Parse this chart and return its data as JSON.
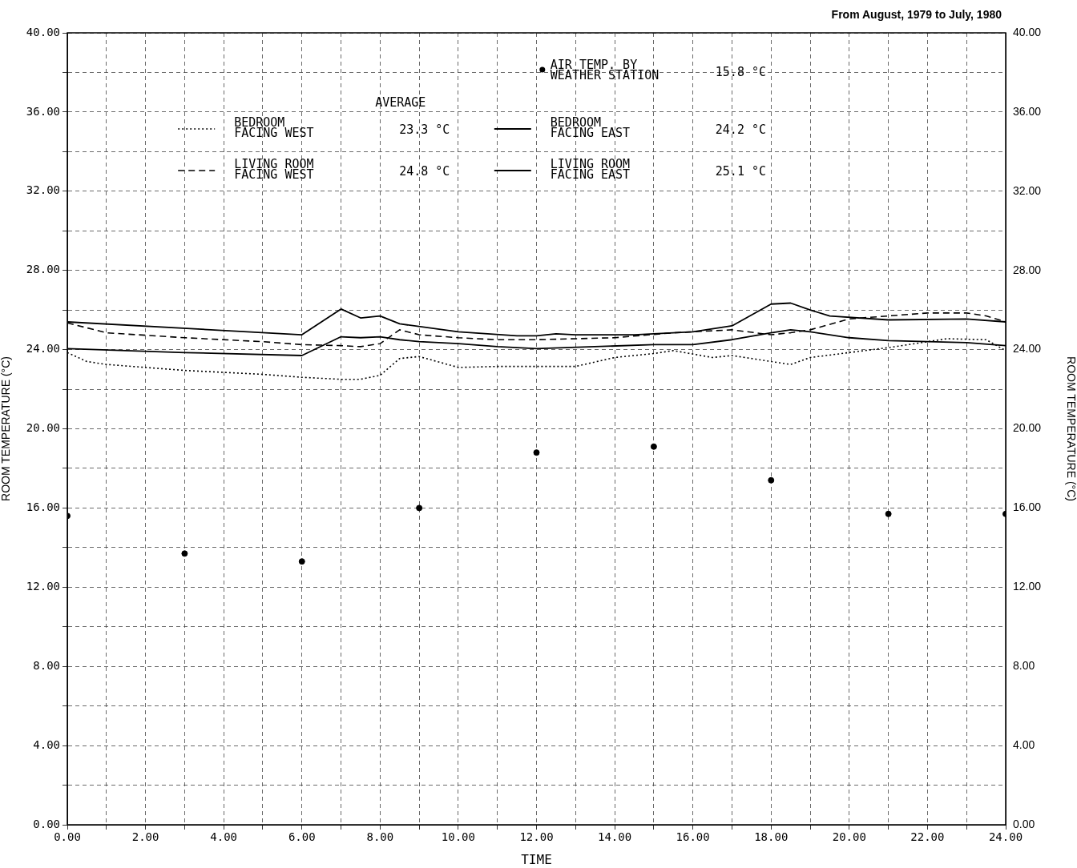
{
  "chart_data": {
    "type": "line",
    "title": "From August, 1979 to July, 1980",
    "xlabel": "TIME",
    "ylabel": "ROOM TEMPERATURE (°C)",
    "y2label": "ROOM TEMPERATURE (°C)",
    "legend_title": "AVERAGE",
    "legend": "top",
    "grid": true,
    "xlim": [
      0,
      24
    ],
    "ylim": [
      0,
      40
    ],
    "y2lim": [
      0,
      40
    ],
    "xticks": [
      {
        "value": 0,
        "label": "0.00"
      },
      {
        "value": 1,
        "label": null
      },
      {
        "value": 2,
        "label": "2.00"
      },
      {
        "value": 3,
        "label": null
      },
      {
        "value": 4,
        "label": "4.00"
      },
      {
        "value": 5,
        "label": null
      },
      {
        "value": 6,
        "label": "6.00"
      },
      {
        "value": 7,
        "label": null
      },
      {
        "value": 8,
        "label": "8.00"
      },
      {
        "value": 9,
        "label": null
      },
      {
        "value": 10,
        "label": "10.00"
      },
      {
        "value": 11,
        "label": null
      },
      {
        "value": 12,
        "label": "12.00"
      },
      {
        "value": 13,
        "label": null
      },
      {
        "value": 14,
        "label": "14.00"
      },
      {
        "value": 15,
        "label": null
      },
      {
        "value": 16,
        "label": "16.00"
      },
      {
        "value": 17,
        "label": null
      },
      {
        "value": 18,
        "label": "18.00"
      },
      {
        "value": 19,
        "label": null
      },
      {
        "value": 20,
        "label": "20.00"
      },
      {
        "value": 21,
        "label": null
      },
      {
        "value": 22,
        "label": "22.00"
      },
      {
        "value": 23,
        "label": null
      },
      {
        "value": 24,
        "label": "24.00"
      }
    ],
    "yticks": [
      {
        "value": 0,
        "label": "0.00"
      },
      {
        "value": 2,
        "label": null
      },
      {
        "value": 4,
        "label": "4.00"
      },
      {
        "value": 6,
        "label": null
      },
      {
        "value": 8,
        "label": "8.00"
      },
      {
        "value": 10,
        "label": null
      },
      {
        "value": 12,
        "label": "12.00"
      },
      {
        "value": 14,
        "label": null
      },
      {
        "value": 16,
        "label": "16.00"
      },
      {
        "value": 18,
        "label": null
      },
      {
        "value": 20,
        "label": "20.00"
      },
      {
        "value": 22,
        "label": null
      },
      {
        "value": 24,
        "label": "24.00"
      },
      {
        "value": 26,
        "label": null
      },
      {
        "value": 28,
        "label": "28.00"
      },
      {
        "value": 30,
        "label": null
      },
      {
        "value": 32,
        "label": "32.00"
      },
      {
        "value": 34,
        "label": null
      },
      {
        "value": 36,
        "label": "36.00"
      },
      {
        "value": 38,
        "label": null
      },
      {
        "value": 40,
        "label": "40.00"
      }
    ],
    "y2ticks": [
      {
        "value": 0,
        "label": "0.00"
      },
      {
        "value": 2,
        "label": null
      },
      {
        "value": 4,
        "label": "4.00"
      },
      {
        "value": 6,
        "label": null
      },
      {
        "value": 8,
        "label": "8.00"
      },
      {
        "value": 10,
        "label": null
      },
      {
        "value": 12,
        "label": "12.00"
      },
      {
        "value": 14,
        "label": null
      },
      {
        "value": 16,
        "label": "16.00"
      },
      {
        "value": 18,
        "label": null
      },
      {
        "value": 20,
        "label": "20.00"
      },
      {
        "value": 22,
        "label": null
      },
      {
        "value": 24,
        "label": "24.00"
      },
      {
        "value": 26,
        "label": null
      },
      {
        "value": 28,
        "label": "28.00"
      },
      {
        "value": 30,
        "label": null
      },
      {
        "value": 32,
        "label": "32.00"
      },
      {
        "value": 34,
        "label": null
      },
      {
        "value": 36,
        "label": "36.00"
      },
      {
        "value": 38,
        "label": null
      },
      {
        "value": 40,
        "label": "40.00"
      }
    ],
    "annotations": [
      "23.3 °C",
      "24.8 °C",
      "24.2 °C",
      "25.1 °C",
      "15.8 °C"
    ],
    "series": [
      {
        "name": "BEDROOM FACING WEST",
        "color": "#000000",
        "line_style": "dotted",
        "x": [
          0,
          0.5,
          1,
          3,
          5,
          6,
          7,
          7.5,
          8,
          8.5,
          9,
          10,
          11,
          12,
          13,
          14,
          15,
          15.5,
          16.5,
          17,
          18,
          18.5,
          19,
          20,
          21,
          22,
          22.5,
          23.5,
          24
        ],
        "values": [
          23.85,
          23.4,
          23.25,
          22.95,
          22.75,
          22.6,
          22.5,
          22.5,
          22.7,
          23.55,
          23.65,
          23.1,
          23.15,
          23.15,
          23.15,
          23.6,
          23.8,
          23.95,
          23.6,
          23.7,
          23.4,
          23.25,
          23.6,
          23.85,
          24.1,
          24.4,
          24.55,
          24.5,
          23.95
        ]
      },
      {
        "name": "LIVING ROOM FACING WEST",
        "color": "#000000",
        "line_style": "dashed",
        "x": [
          0,
          1,
          3,
          5,
          6,
          7,
          7.5,
          8,
          8.5,
          9,
          10,
          11,
          12,
          14,
          15.5,
          17,
          18,
          18.5,
          19,
          20,
          21,
          22,
          23,
          23.5,
          24
        ],
        "values": [
          25.35,
          24.85,
          24.6,
          24.4,
          24.25,
          24.2,
          24.15,
          24.3,
          25.0,
          24.75,
          24.6,
          24.5,
          24.5,
          24.6,
          24.85,
          25.0,
          24.75,
          24.85,
          25.0,
          25.55,
          25.7,
          25.85,
          25.85,
          25.7,
          25.4
        ]
      },
      {
        "name": "BEDROOM FACING EAST",
        "color": "#000000",
        "line_style": "solid",
        "x": [
          0,
          3,
          6,
          7,
          7.5,
          8,
          8.5,
          9,
          10,
          11,
          12,
          15,
          16,
          17,
          18,
          18.5,
          19,
          20,
          21,
          22,
          23,
          24
        ],
        "values": [
          24.05,
          23.85,
          23.7,
          24.65,
          24.6,
          24.65,
          24.5,
          24.4,
          24.3,
          24.15,
          24.05,
          24.25,
          24.25,
          24.5,
          24.85,
          25.0,
          24.9,
          24.6,
          24.45,
          24.4,
          24.35,
          24.2
        ]
      },
      {
        "name": "LIVING ROOM FACING EAST",
        "color": "#000000",
        "line_style": "solid",
        "x": [
          0,
          6,
          7,
          7.5,
          8,
          8.5,
          10,
          11.5,
          12,
          12.5,
          13,
          14.5,
          16,
          17,
          18,
          18.5,
          19,
          19.5,
          21,
          23,
          24
        ],
        "values": [
          25.4,
          24.75,
          26.05,
          25.6,
          25.7,
          25.3,
          24.9,
          24.7,
          24.7,
          24.8,
          24.75,
          24.75,
          24.9,
          25.2,
          26.3,
          26.35,
          26.0,
          25.7,
          25.5,
          25.55,
          25.4
        ]
      },
      {
        "name": "AIR TEMP. BY WEATHER STATION",
        "type": "scatter",
        "marker": "circle",
        "color": "#000000",
        "x": [
          0,
          3,
          6,
          9,
          12,
          15,
          18,
          21,
          24
        ],
        "values": [
          15.6,
          13.7,
          13.3,
          16.0,
          18.8,
          19.1,
          17.4,
          15.7,
          15.7
        ]
      }
    ]
  }
}
